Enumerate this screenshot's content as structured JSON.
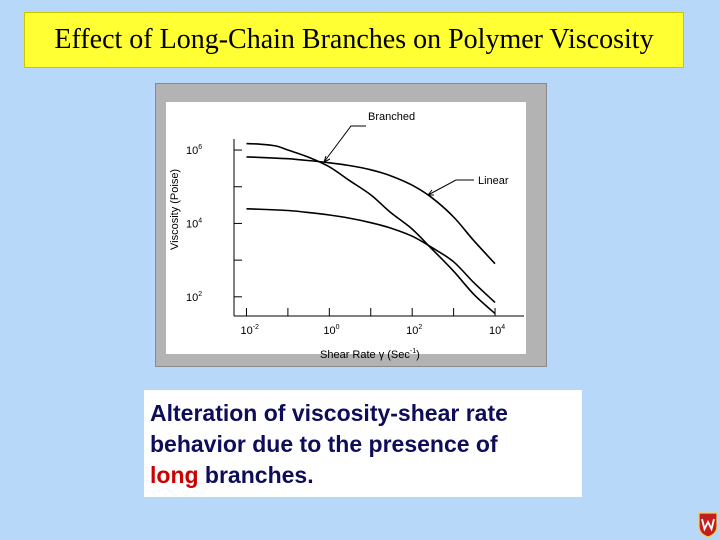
{
  "slide": {
    "title": "Effect of Long-Chain Branches on Polymer Viscosity",
    "caption_lines": [
      "Alteration of viscosity-shear rate",
      "behavior due to the presence of"
    ],
    "caption_last_accent": "long",
    "caption_last_rest": " branches.",
    "logo_icon": "university-crest-icon"
  },
  "chart_data": {
    "type": "line",
    "xlabel": "Shear Rate γ (Sec",
    "xlabel_sup": "-1",
    "xlabel_end": ")",
    "ylabel": "Viscosity (Poise)",
    "xscale": "log",
    "yscale": "log",
    "xlim": [
      0.005,
      50000
    ],
    "ylim": [
      30,
      2000000
    ],
    "x_ticks": [
      {
        "base": "10",
        "exp": "-2",
        "value": 0.01
      },
      {
        "base": "10",
        "exp": "0",
        "value": 1
      },
      {
        "base": "10",
        "exp": "2",
        "value": 100
      },
      {
        "base": "10",
        "exp": "4",
        "value": 10000
      }
    ],
    "y_ticks": [
      {
        "base": "10",
        "exp": "6",
        "value": 1000000
      },
      {
        "base": "10",
        "exp": "4",
        "value": 10000
      },
      {
        "base": "10",
        "exp": "2",
        "value": 100
      }
    ],
    "annotations": [
      "Branched",
      "Linear"
    ],
    "series": [
      {
        "id": "branched",
        "x": [
          0.01,
          0.02,
          0.05,
          0.1,
          0.3,
          1,
          3,
          10,
          30,
          100,
          300,
          1000,
          3000,
          10000
        ],
        "y": [
          1500000,
          1450000,
          1300000,
          1000000,
          650000,
          350000,
          150000,
          60000,
          20000,
          7000,
          2000,
          500,
          120,
          35
        ]
      },
      {
        "id": "linear-upper",
        "x": [
          0.01,
          0.03,
          0.1,
          0.3,
          1,
          3,
          10,
          30,
          100,
          300,
          1000,
          3000,
          10000
        ],
        "y": [
          650000,
          620000,
          580000,
          520000,
          450000,
          380000,
          290000,
          200000,
          110000,
          50000,
          15000,
          3500,
          800
        ]
      },
      {
        "id": "linear-lower",
        "x": [
          0.01,
          0.03,
          0.1,
          0.3,
          1,
          3,
          10,
          30,
          100,
          300,
          1000,
          3000,
          10000
        ],
        "y": [
          25000,
          24000,
          22500,
          20000,
          17000,
          14000,
          10500,
          7500,
          4500,
          2200,
          900,
          250,
          70
        ]
      }
    ]
  }
}
